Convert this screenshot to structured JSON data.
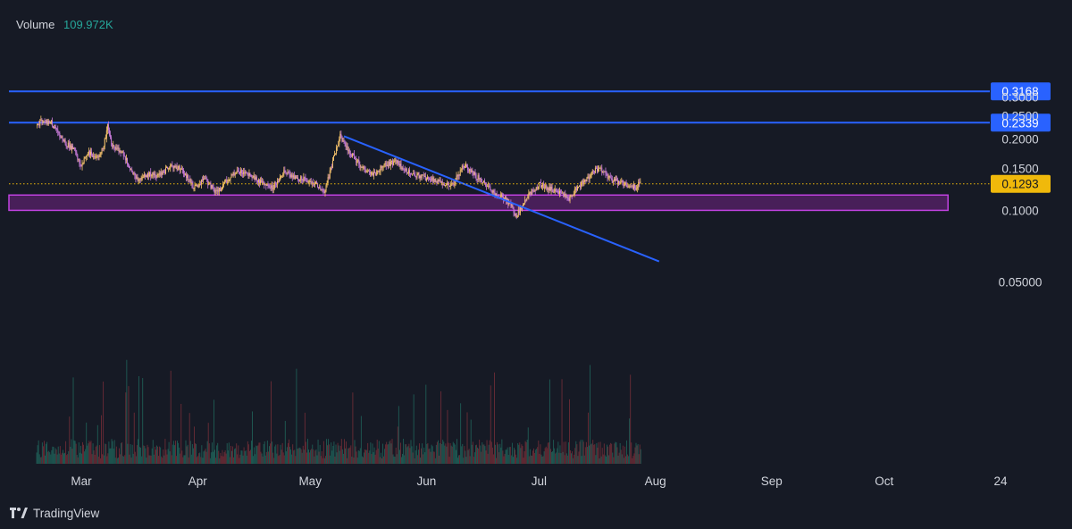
{
  "chart_data": {
    "type": "candlestick",
    "header": {
      "label": "Volume",
      "value": "109.972K"
    },
    "price_scale": {
      "type": "log",
      "range": [
        0.055,
        0.33
      ],
      "ticks": [
        "0.05000",
        "0.1000",
        "0.1500",
        "0.2000",
        "0.2500",
        "0.3000"
      ]
    },
    "time_axis": {
      "ticks": [
        "Mar",
        "Apr",
        "May",
        "Jun",
        "Jul",
        "Aug",
        "Sep",
        "Oct",
        "24"
      ]
    },
    "price_path": [
      [
        "Feb 18",
        0.228
      ],
      [
        "Feb 20",
        0.24
      ],
      [
        "Feb 22",
        0.232
      ],
      [
        "Feb 24",
        0.21
      ],
      [
        "Feb 26",
        0.19
      ],
      [
        "Feb 28",
        0.18
      ],
      [
        "Mar 1",
        0.155
      ],
      [
        "Mar 3",
        0.175
      ],
      [
        "Mar 5",
        0.165
      ],
      [
        "Mar 7",
        0.185
      ],
      [
        "Mar 8",
        0.225
      ],
      [
        "Mar 9",
        0.19
      ],
      [
        "Mar 12",
        0.175
      ],
      [
        "Mar 14",
        0.15
      ],
      [
        "Mar 16",
        0.135
      ],
      [
        "Mar 19",
        0.143
      ],
      [
        "Mar 22",
        0.14
      ],
      [
        "Mar 25",
        0.155
      ],
      [
        "Mar 28",
        0.148
      ],
      [
        "Mar 31",
        0.125
      ],
      [
        "Apr 3",
        0.135
      ],
      [
        "Apr 6",
        0.118
      ],
      [
        "Apr 9",
        0.135
      ],
      [
        "Apr 12",
        0.148
      ],
      [
        "Apr 15",
        0.14
      ],
      [
        "Apr 18",
        0.13
      ],
      [
        "Apr 21",
        0.125
      ],
      [
        "Apr 24",
        0.145
      ],
      [
        "Apr 27",
        0.138
      ],
      [
        "Apr 30",
        0.135
      ],
      [
        "May 3",
        0.128
      ],
      [
        "May 5",
        0.12
      ],
      [
        "May 7",
        0.16
      ],
      [
        "May 9",
        0.205
      ],
      [
        "May 11",
        0.18
      ],
      [
        "May 13",
        0.165
      ],
      [
        "May 15",
        0.15
      ],
      [
        "May 18",
        0.142
      ],
      [
        "May 21",
        0.155
      ],
      [
        "May 24",
        0.16
      ],
      [
        "May 27",
        0.145
      ],
      [
        "May 30",
        0.14
      ],
      [
        "Jun 2",
        0.135
      ],
      [
        "Jun 5",
        0.13
      ],
      [
        "Jun 8",
        0.128
      ],
      [
        "Jun 11",
        0.155
      ],
      [
        "Jun 14",
        0.14
      ],
      [
        "Jun 17",
        0.128
      ],
      [
        "Jun 20",
        0.115
      ],
      [
        "Jun 22",
        0.112
      ],
      [
        "Jun 25",
        0.095
      ],
      [
        "Jun 27",
        0.108
      ],
      [
        "Jun 29",
        0.12
      ],
      [
        "Jul 1",
        0.128
      ],
      [
        "Jul 3",
        0.125
      ],
      [
        "Jul 6",
        0.12
      ],
      [
        "Jul 9",
        0.112
      ],
      [
        "Jul 12",
        0.128
      ],
      [
        "Jul 15",
        0.142
      ],
      [
        "Jul 17",
        0.152
      ],
      [
        "Jul 20",
        0.135
      ],
      [
        "Jul 23",
        0.13
      ],
      [
        "Jul 26",
        0.125
      ],
      [
        "Jul 28",
        0.129
      ]
    ],
    "horizontal_levels": [
      {
        "value": 0.3168,
        "label": "0.3168",
        "color": "#2962ff"
      },
      {
        "value": 0.2339,
        "label": "0.2339",
        "color": "#2962ff"
      }
    ],
    "last_price": {
      "value": 0.1293,
      "label": "0.1293",
      "color": "#f0b90b"
    },
    "support_zone": {
      "low": 0.1,
      "high": 0.116,
      "from": "Feb 16",
      "to": "Oct 18",
      "color": "#9c27b0"
    },
    "trendline": {
      "from": [
        "May 10",
        0.205
      ],
      "to": [
        "Aug 2",
        0.061
      ],
      "color": "#2962ff"
    },
    "volume_bars": "small red/green bars along bottom, Feb 16 – Jul 28",
    "colors": {
      "background": "#161a25",
      "candle_up": "#f6c26b",
      "candle_down": "#c77ad8",
      "volume_up": "#1f5c55",
      "volume_down": "#6b2c36",
      "axis_text": "#d1d4dc"
    }
  },
  "watermark": {
    "brand": "TradingView"
  }
}
